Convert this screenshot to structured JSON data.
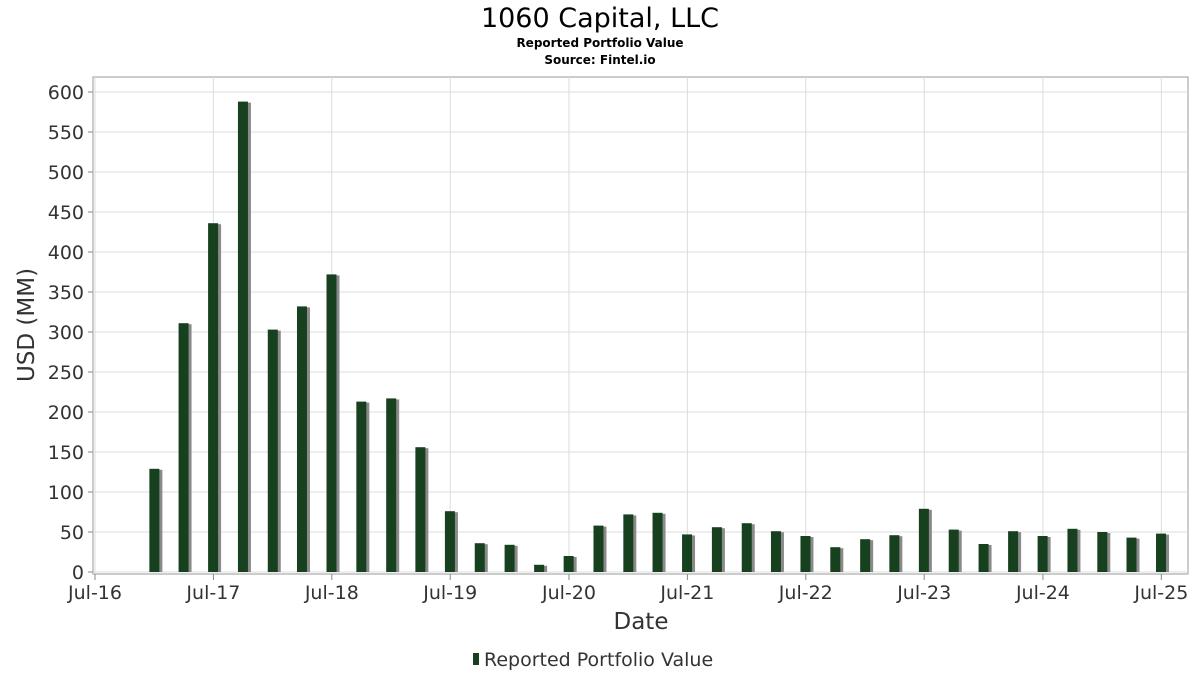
{
  "chart_data": {
    "type": "bar",
    "title": "1060 Capital, LLC",
    "subtitle": "Reported Portfolio Value",
    "source": "Source: Fintel.io",
    "xlabel": "Date",
    "ylabel": "USD (MM)",
    "ylim": [
      0,
      615
    ],
    "yticks": [
      0,
      50,
      100,
      150,
      200,
      250,
      300,
      350,
      400,
      450,
      500,
      550,
      600
    ],
    "xlim": [
      "2016-07-01",
      "2025-09-15"
    ],
    "xticks": [
      {
        "date": "2016-07-01",
        "label": "Jul-16"
      },
      {
        "date": "2017-07-01",
        "label": "Jul-17"
      },
      {
        "date": "2018-07-01",
        "label": "Jul-18"
      },
      {
        "date": "2019-07-01",
        "label": "Jul-19"
      },
      {
        "date": "2020-07-01",
        "label": "Jul-20"
      },
      {
        "date": "2021-07-01",
        "label": "Jul-21"
      },
      {
        "date": "2022-07-01",
        "label": "Jul-22"
      },
      {
        "date": "2023-07-01",
        "label": "Jul-23"
      },
      {
        "date": "2024-07-01",
        "label": "Jul-24"
      },
      {
        "date": "2025-07-01",
        "label": "Jul-25"
      }
    ],
    "grid": true,
    "legend_position": "bottom-center",
    "series": [
      {
        "name": "Reported Portfolio Value",
        "color": "#17401f",
        "shadow_color": "#8a8a8a",
        "points": [
          {
            "date": "2016-12-31",
            "value": 129
          },
          {
            "date": "2017-03-31",
            "value": 311
          },
          {
            "date": "2017-06-30",
            "value": 436
          },
          {
            "date": "2017-09-30",
            "value": 588
          },
          {
            "date": "2017-12-31",
            "value": 303
          },
          {
            "date": "2018-03-31",
            "value": 332
          },
          {
            "date": "2018-06-30",
            "value": 372
          },
          {
            "date": "2018-09-30",
            "value": 213
          },
          {
            "date": "2018-12-31",
            "value": 217
          },
          {
            "date": "2019-03-31",
            "value": 156
          },
          {
            "date": "2019-06-30",
            "value": 76
          },
          {
            "date": "2019-09-30",
            "value": 36
          },
          {
            "date": "2019-12-31",
            "value": 34
          },
          {
            "date": "2020-03-31",
            "value": 9
          },
          {
            "date": "2020-06-30",
            "value": 20
          },
          {
            "date": "2020-09-30",
            "value": 58
          },
          {
            "date": "2020-12-31",
            "value": 72
          },
          {
            "date": "2021-03-31",
            "value": 74
          },
          {
            "date": "2021-06-30",
            "value": 47
          },
          {
            "date": "2021-09-30",
            "value": 56
          },
          {
            "date": "2021-12-31",
            "value": 61
          },
          {
            "date": "2022-03-31",
            "value": 51
          },
          {
            "date": "2022-06-30",
            "value": 45
          },
          {
            "date": "2022-09-30",
            "value": 31
          },
          {
            "date": "2022-12-31",
            "value": 41
          },
          {
            "date": "2023-03-31",
            "value": 46
          },
          {
            "date": "2023-06-30",
            "value": 79
          },
          {
            "date": "2023-09-30",
            "value": 53
          },
          {
            "date": "2023-12-31",
            "value": 35
          },
          {
            "date": "2024-03-31",
            "value": 51
          },
          {
            "date": "2024-06-30",
            "value": 45
          },
          {
            "date": "2024-09-30",
            "value": 54
          },
          {
            "date": "2024-12-31",
            "value": 50
          },
          {
            "date": "2025-03-31",
            "value": 43
          },
          {
            "date": "2025-06-30",
            "value": 48
          }
        ]
      }
    ]
  }
}
